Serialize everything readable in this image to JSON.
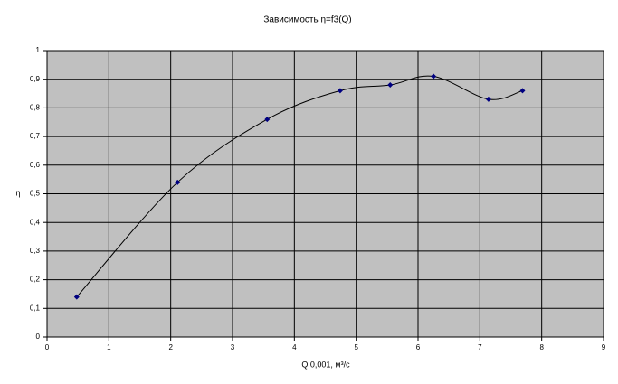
{
  "chart_data": {
    "type": "scatter",
    "title": "Зависимость η=f3(Q)",
    "x_label": "Q 0,001, м³/с",
    "y_label": "η",
    "series": [
      {
        "name": "η",
        "color": "#000080",
        "line_color": "#000000",
        "x": [
          0.48,
          2.11,
          3.56,
          4.74,
          5.55,
          6.25,
          7.14,
          7.69
        ],
        "values": [
          0.14,
          0.54,
          0.76,
          0.86,
          0.88,
          0.91,
          0.83,
          0.86
        ]
      }
    ],
    "smooth": true,
    "xlim": [
      0,
      9
    ],
    "xticks": [
      0,
      1,
      2,
      3,
      4,
      5,
      6,
      7,
      8,
      9
    ],
    "ylim": [
      0,
      1
    ],
    "yticks": [
      0,
      {
        "value": 0.1,
        "label": "0,1"
      },
      {
        "value": 0.2,
        "label": "0,2"
      },
      {
        "value": 0.3,
        "label": "0,3"
      },
      {
        "value": 0.4,
        "label": "0,4"
      },
      {
        "value": 0.5,
        "label": "0,5"
      },
      {
        "value": 0.6,
        "label": "0,6"
      },
      {
        "value": 0.7,
        "label": "0,7"
      },
      {
        "value": 0.8,
        "label": "0,8"
      },
      {
        "value": 0.9,
        "label": "0,9"
      },
      1
    ],
    "grid": true,
    "plot_background": "#c0c0c0"
  }
}
